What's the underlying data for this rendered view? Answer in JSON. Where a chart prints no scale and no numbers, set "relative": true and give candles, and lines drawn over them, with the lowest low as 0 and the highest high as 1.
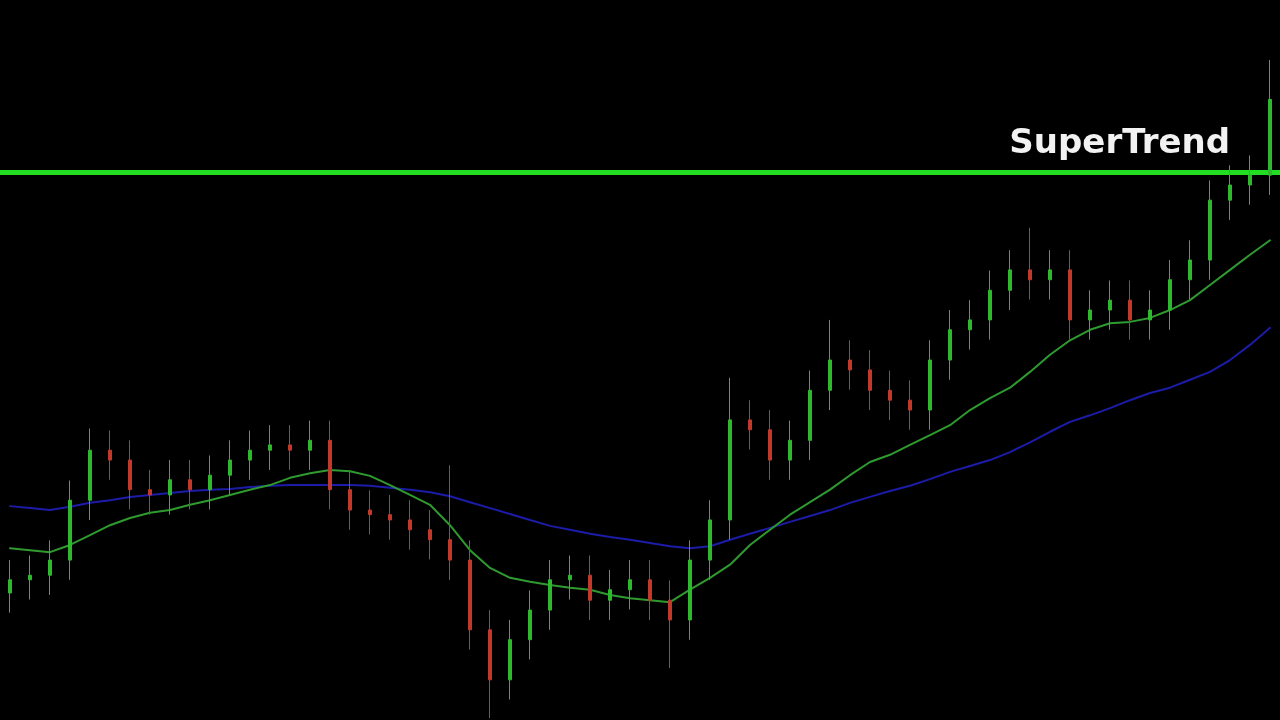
{
  "chart_data": {
    "type": "candlestick",
    "relative": true,
    "grid": false,
    "tick_labels": false,
    "marker": "none",
    "line_style": "solid",
    "categories": [
      null,
      null,
      null,
      null,
      null,
      null,
      null,
      null,
      null,
      null,
      null,
      null,
      null,
      null,
      null,
      null,
      null,
      null,
      null,
      null,
      null,
      null,
      null,
      null,
      null,
      null,
      null,
      null,
      null,
      null,
      null,
      null,
      null,
      null,
      null,
      null,
      null,
      null,
      null,
      null,
      null,
      null,
      null,
      null,
      null,
      null,
      null,
      null,
      null,
      null,
      null,
      null,
      null,
      null,
      null,
      null,
      null,
      null,
      null,
      null,
      null,
      null,
      null,
      null
    ],
    "ohlc": [
      [
        0.19,
        0.24,
        0.16,
        0.21
      ],
      [
        0.21,
        0.247,
        0.18,
        0.217
      ],
      [
        0.217,
        0.27,
        0.187,
        0.24
      ],
      [
        0.24,
        0.361,
        0.21,
        0.331
      ],
      [
        0.331,
        0.44,
        0.301,
        0.407
      ],
      [
        0.407,
        0.437,
        0.362,
        0.392
      ],
      [
        0.392,
        0.422,
        0.317,
        0.347
      ],
      [
        0.347,
        0.377,
        0.309,
        0.339
      ],
      [
        0.339,
        0.392,
        0.309,
        0.362
      ],
      [
        0.362,
        0.392,
        0.317,
        0.347
      ],
      [
        0.347,
        0.399,
        0.317,
        0.369
      ],
      [
        0.369,
        0.422,
        0.339,
        0.392
      ],
      [
        0.392,
        0.437,
        0.362,
        0.407
      ],
      [
        0.407,
        0.445,
        0.377,
        0.415
      ],
      [
        0.415,
        0.445,
        0.377,
        0.407
      ],
      [
        0.407,
        0.452,
        0.377,
        0.422
      ],
      [
        0.422,
        0.452,
        0.317,
        0.347
      ],
      [
        0.347,
        0.377,
        0.286,
        0.316
      ],
      [
        0.316,
        0.346,
        0.279,
        0.309
      ],
      [
        0.309,
        0.339,
        0.271,
        0.301
      ],
      [
        0.301,
        0.331,
        0.256,
        0.286
      ],
      [
        0.286,
        0.316,
        0.241,
        0.271
      ],
      [
        0.271,
        0.384,
        0.21,
        0.24
      ],
      [
        0.24,
        0.27,
        0.104,
        0.134
      ],
      [
        0.134,
        0.164,
        0,
        0.058
      ],
      [
        0.058,
        0.149,
        0.028,
        0.119
      ],
      [
        0.119,
        0.194,
        0.089,
        0.164
      ],
      [
        0.164,
        0.24,
        0.134,
        0.21
      ],
      [
        0.21,
        0.247,
        0.18,
        0.217
      ],
      [
        0.217,
        0.247,
        0.149,
        0.179
      ],
      [
        0.179,
        0.225,
        0.149,
        0.195
      ],
      [
        0.195,
        0.24,
        0.165,
        0.21
      ],
      [
        0.21,
        0.24,
        0.149,
        0.179
      ],
      [
        0.179,
        0.209,
        0.076,
        0.149
      ],
      [
        0.149,
        0.27,
        0.119,
        0.24
      ],
      [
        0.24,
        0.331,
        0.21,
        0.301
      ],
      [
        0.301,
        0.517,
        0.271,
        0.453
      ],
      [
        0.453,
        0.483,
        0.408,
        0.438
      ],
      [
        0.438,
        0.468,
        0.362,
        0.392
      ],
      [
        0.392,
        0.452,
        0.362,
        0.422
      ],
      [
        0.422,
        0.528,
        0.392,
        0.498
      ],
      [
        0.498,
        0.605,
        0.468,
        0.544
      ],
      [
        0.544,
        0.574,
        0.499,
        0.529
      ],
      [
        0.529,
        0.559,
        0.468,
        0.498
      ],
      [
        0.498,
        0.528,
        0.453,
        0.483
      ],
      [
        0.483,
        0.513,
        0.438,
        0.468
      ],
      [
        0.468,
        0.574,
        0.438,
        0.544
      ],
      [
        0.544,
        0.62,
        0.514,
        0.59
      ],
      [
        0.59,
        0.635,
        0.56,
        0.605
      ],
      [
        0.605,
        0.68,
        0.575,
        0.65
      ],
      [
        0.65,
        0.711,
        0.62,
        0.681
      ],
      [
        0.681,
        0.745,
        0.636,
        0.666
      ],
      [
        0.666,
        0.711,
        0.636,
        0.681
      ],
      [
        0.681,
        0.711,
        0.575,
        0.605
      ],
      [
        0.605,
        0.65,
        0.575,
        0.62
      ],
      [
        0.62,
        0.665,
        0.59,
        0.635
      ],
      [
        0.635,
        0.665,
        0.575,
        0.605
      ],
      [
        0.605,
        0.65,
        0.575,
        0.62
      ],
      [
        0.62,
        0.696,
        0.59,
        0.666
      ],
      [
        0.666,
        0.726,
        0.636,
        0.696
      ],
      [
        0.696,
        0.817,
        0.666,
        0.787
      ],
      [
        0.787,
        0.84,
        0.757,
        0.81
      ],
      [
        0.81,
        0.855,
        0.78,
        0.825
      ],
      [
        0.825,
        1.0,
        0.795,
        0.94
      ]
    ],
    "colors": [
      "#2eb82e",
      "#2eb82e",
      "#2eb82e",
      "#2eb82e",
      "#2eb82e",
      "#c0392b",
      "#c0392b",
      "#c0392b",
      "#2eb82e",
      "#c0392b",
      "#2eb82e",
      "#2eb82e",
      "#2eb82e",
      "#2eb82e",
      "#c0392b",
      "#2eb82e",
      "#c0392b",
      "#c0392b",
      "#c0392b",
      "#c0392b",
      "#c0392b",
      "#c0392b",
      "#c0392b",
      "#c0392b",
      "#c0392b",
      "#2eb82e",
      "#2eb82e",
      "#2eb82e",
      "#2eb82e",
      "#c0392b",
      "#2eb82e",
      "#2eb82e",
      "#c0392b",
      "#c0392b",
      "#2eb82e",
      "#2eb82e",
      "#2eb82e",
      "#c0392b",
      "#c0392b",
      "#2eb82e",
      "#2eb82e",
      "#2eb82e",
      "#c0392b",
      "#c0392b",
      "#c0392b",
      "#c0392b",
      "#2eb82e",
      "#2eb82e",
      "#2eb82e",
      "#2eb82e",
      "#2eb82e",
      "#c0392b",
      "#2eb82e",
      "#c0392b",
      "#2eb82e",
      "#2eb82e",
      "#c0392b",
      "#2eb82e",
      "#2eb82e",
      "#2eb82e",
      "#2eb82e",
      "#2eb82e",
      "#2eb82e",
      "#2eb82e"
    ],
    "series": [
      {
        "type": "line",
        "color": "#1c1ca8",
        "values": [
          0.322,
          0.319,
          0.316,
          0.321,
          0.327,
          0.331,
          0.336,
          0.339,
          0.342,
          0.345,
          0.347,
          0.348,
          0.351,
          0.353,
          0.354,
          0.354,
          0.354,
          0.354,
          0.353,
          0.35,
          0.347,
          0.343,
          0.337,
          0.328,
          0.319,
          0.31,
          0.301,
          0.292,
          0.286,
          0.28,
          0.275,
          0.271,
          0.266,
          0.261,
          0.258,
          0.261,
          0.271,
          0.28,
          0.289,
          0.298,
          0.307,
          0.316,
          0.327,
          0.336,
          0.345,
          0.353,
          0.363,
          0.374,
          0.383,
          0.392,
          0.404,
          0.419,
          0.435,
          0.45,
          0.46,
          0.471,
          0.483,
          0.494,
          0.502,
          0.514,
          0.526,
          0.544,
          0.567,
          0.593
        ]
      },
      {
        "type": "line",
        "color": "#2f9a2f",
        "values": [
          0.258,
          0.255,
          0.252,
          0.263,
          0.278,
          0.293,
          0.304,
          0.312,
          0.316,
          0.324,
          0.331,
          0.339,
          0.347,
          0.354,
          0.365,
          0.372,
          0.377,
          0.375,
          0.368,
          0.354,
          0.339,
          0.324,
          0.293,
          0.255,
          0.228,
          0.213,
          0.207,
          0.202,
          0.198,
          0.195,
          0.187,
          0.182,
          0.179,
          0.176,
          0.195,
          0.213,
          0.233,
          0.263,
          0.286,
          0.309,
          0.328,
          0.347,
          0.369,
          0.389,
          0.4,
          0.415,
          0.43,
          0.445,
          0.468,
          0.486,
          0.502,
          0.526,
          0.552,
          0.574,
          0.59,
          0.6,
          0.602,
          0.608,
          0.62,
          0.635,
          0.658,
          0.681,
          0.704,
          0.726
        ]
      }
    ],
    "ref_lines": [
      {
        "axis": "y",
        "value": 0.828,
        "label": "SuperTrend",
        "color": "#22dd22",
        "line_style": "solid"
      }
    ]
  }
}
